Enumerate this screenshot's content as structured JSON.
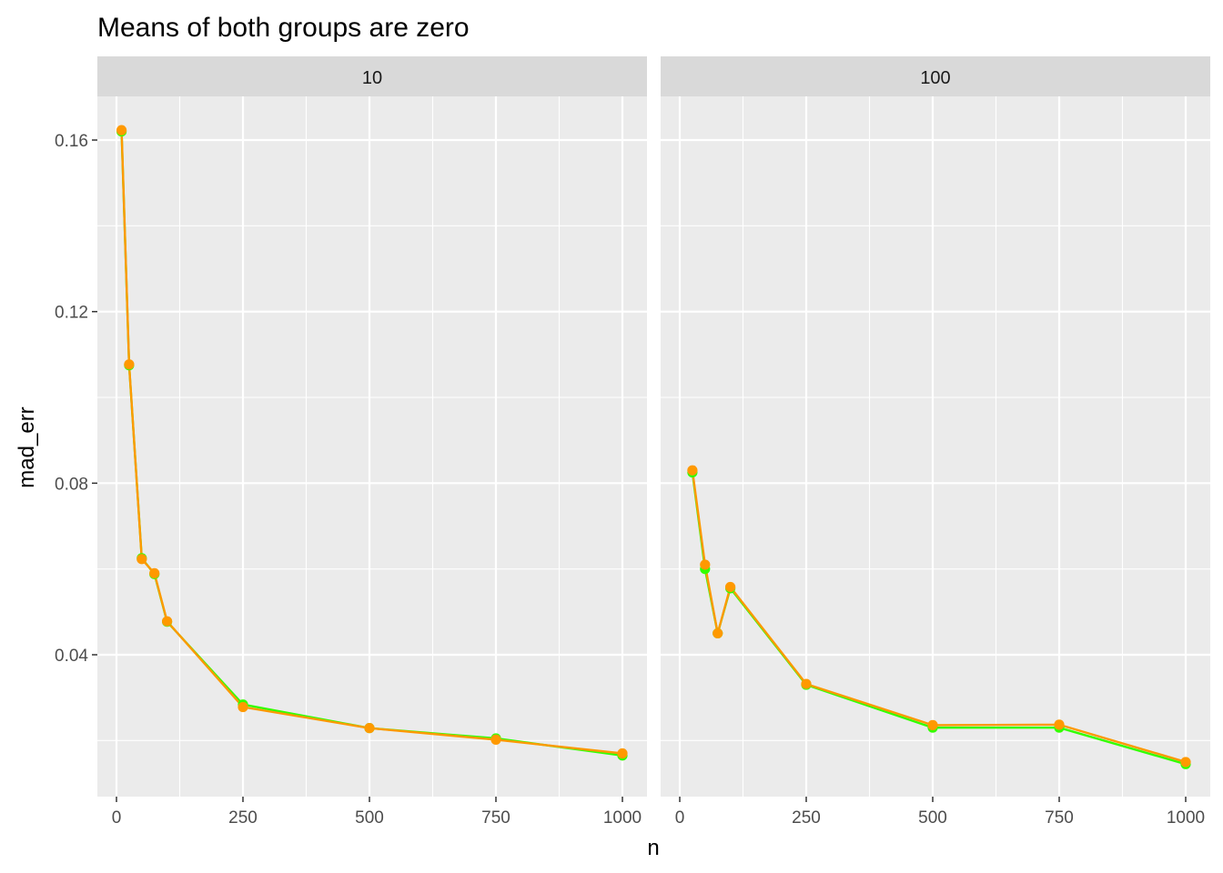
{
  "chart_data": {
    "type": "line",
    "title": "Means of both groups are zero",
    "xlabel": "n",
    "ylabel": "mad_err",
    "xlim": [
      0,
      1000
    ],
    "ylim": [
      0.0,
      0.17
    ],
    "x_ticks": [
      "0",
      "250",
      "500",
      "750",
      "1000"
    ],
    "y_ticks": [
      "0.04",
      "0.08",
      "0.12",
      "0.16"
    ],
    "grid": true,
    "legend": "none",
    "facets": [
      {
        "label": "10",
        "series": [
          {
            "color": "#33ff00",
            "x": [
              10,
              25,
              50,
              75,
              100,
              250,
              500,
              750,
              1000
            ],
            "y": [
              0.162,
              0.1075,
              0.0625,
              0.0588,
              0.0477,
              0.0284,
              0.0229,
              0.0205,
              0.0165
            ]
          },
          {
            "color": "#ff9900",
            "x": [
              10,
              25,
              50,
              75,
              100,
              250,
              500,
              750,
              1000
            ],
            "y": [
              0.1623,
              0.1077,
              0.0623,
              0.059,
              0.0478,
              0.0278,
              0.0229,
              0.0202,
              0.017
            ]
          }
        ]
      },
      {
        "label": "100",
        "series": [
          {
            "color": "#33ff00",
            "x": [
              25,
              50,
              75,
              100,
              250,
              500,
              750,
              1000
            ],
            "y": [
              0.0825,
              0.06,
              0.045,
              0.0555,
              0.033,
              0.023,
              0.023,
              0.0145
            ]
          },
          {
            "color": "#ff9900",
            "x": [
              25,
              50,
              75,
              100,
              250,
              500,
              750,
              1000
            ],
            "y": [
              0.083,
              0.061,
              0.045,
              0.0558,
              0.0332,
              0.0236,
              0.0237,
              0.015
            ]
          }
        ]
      }
    ]
  }
}
